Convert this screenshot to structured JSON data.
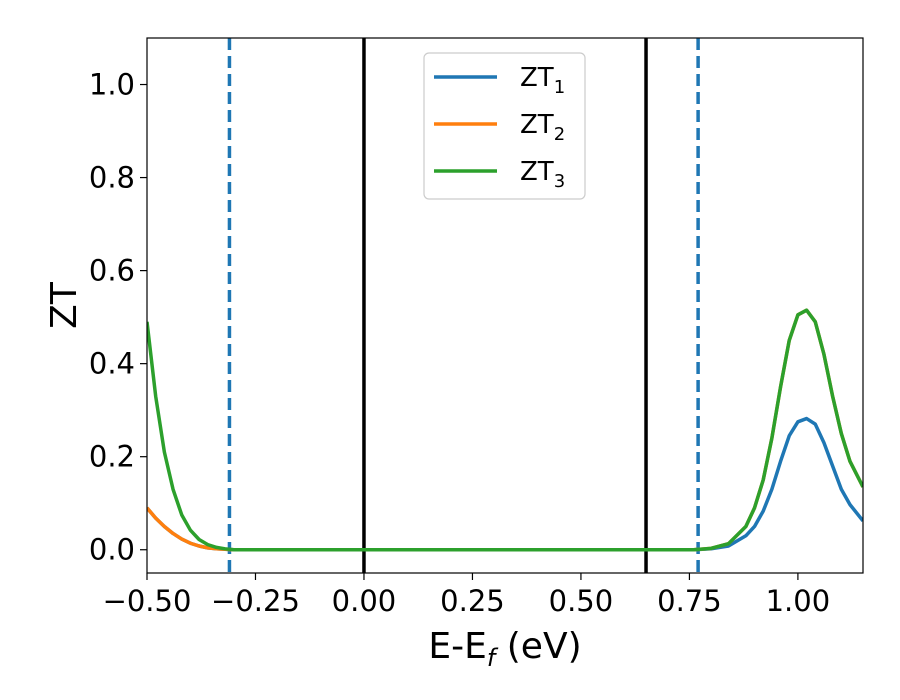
{
  "chart_data": {
    "type": "line",
    "xlabel": "E-E",
    "xlabel_sub": "f",
    "xlabel_unit": " (eV)",
    "ylabel": "ZT",
    "xlim": [
      -0.5,
      1.15
    ],
    "ylim": [
      -0.05,
      1.1
    ],
    "xticks": [
      -0.5,
      -0.25,
      0.0,
      0.25,
      0.5,
      0.75,
      1.0
    ],
    "xtick_labels": [
      "−0.50",
      "−0.25",
      "0.00",
      "0.25",
      "0.50",
      "0.75",
      "1.00"
    ],
    "yticks": [
      0.0,
      0.2,
      0.4,
      0.6,
      0.8,
      1.0
    ],
    "ytick_labels": [
      "0.0",
      "0.2",
      "0.4",
      "0.6",
      "0.8",
      "1.0"
    ],
    "grid": false,
    "legend": {
      "position": "top-center",
      "entries": [
        {
          "base": "ZT",
          "sub": "1",
          "color": "#1f77b4"
        },
        {
          "base": "ZT",
          "sub": "2",
          "color": "#ff7f0e"
        },
        {
          "base": "ZT",
          "sub": "3",
          "color": "#2ca02c"
        }
      ]
    },
    "series": [
      {
        "name": "ZT1",
        "color": "#1f77b4",
        "x": [
          -0.5,
          -0.48,
          -0.46,
          -0.44,
          -0.42,
          -0.4,
          -0.38,
          -0.36,
          -0.34,
          -0.32,
          -0.3,
          -0.25,
          -0.2,
          0.0,
          0.5,
          0.7,
          0.76,
          0.8,
          0.84,
          0.88,
          0.9,
          0.92,
          0.94,
          0.96,
          0.98,
          1.0,
          1.02,
          1.04,
          1.06,
          1.08,
          1.1,
          1.12,
          1.15
        ],
        "y": [
          0.09,
          0.068,
          0.05,
          0.035,
          0.023,
          0.014,
          0.008,
          0.004,
          0.002,
          0.001,
          0.0,
          0.0,
          0.0,
          0.0,
          0.0,
          0.0,
          0.0,
          0.002,
          0.008,
          0.03,
          0.05,
          0.083,
          0.13,
          0.19,
          0.245,
          0.275,
          0.282,
          0.27,
          0.23,
          0.18,
          0.13,
          0.097,
          0.062
        ]
      },
      {
        "name": "ZT2",
        "color": "#ff7f0e",
        "x": [
          -0.5,
          -0.48,
          -0.46,
          -0.44,
          -0.42,
          -0.4,
          -0.38,
          -0.36,
          -0.34,
          -0.32,
          -0.3,
          -0.25,
          -0.2,
          0.0,
          0.5,
          0.7,
          0.76,
          0.8,
          0.84,
          0.88,
          0.9,
          0.92,
          0.94,
          0.96,
          0.98,
          1.0,
          1.02,
          1.04,
          1.06,
          1.08,
          1.1,
          1.12,
          1.15
        ],
        "y": [
          0.09,
          0.068,
          0.05,
          0.035,
          0.023,
          0.014,
          0.008,
          0.004,
          0.002,
          0.001,
          0.0,
          0.0,
          0.0,
          0.0,
          0.0,
          0.0,
          0.0,
          0.003,
          0.013,
          0.05,
          0.09,
          0.15,
          0.24,
          0.35,
          0.45,
          0.505,
          0.515,
          0.49,
          0.42,
          0.33,
          0.25,
          0.19,
          0.135
        ]
      },
      {
        "name": "ZT3",
        "color": "#2ca02c",
        "x": [
          -0.5,
          -0.48,
          -0.46,
          -0.44,
          -0.42,
          -0.4,
          -0.38,
          -0.36,
          -0.34,
          -0.32,
          -0.3,
          -0.25,
          -0.2,
          0.0,
          0.5,
          0.7,
          0.76,
          0.8,
          0.84,
          0.88,
          0.9,
          0.92,
          0.94,
          0.96,
          0.98,
          1.0,
          1.02,
          1.04,
          1.06,
          1.08,
          1.1,
          1.12,
          1.15
        ],
        "y": [
          0.49,
          0.33,
          0.21,
          0.13,
          0.075,
          0.042,
          0.022,
          0.011,
          0.005,
          0.002,
          0.0,
          0.0,
          0.0,
          0.0,
          0.0,
          0.0,
          0.0,
          0.003,
          0.013,
          0.05,
          0.09,
          0.15,
          0.24,
          0.35,
          0.45,
          0.505,
          0.515,
          0.49,
          0.42,
          0.33,
          0.25,
          0.19,
          0.135
        ]
      }
    ],
    "vlines": [
      {
        "x": -0.31,
        "color": "#1f77b4",
        "style": "dashed"
      },
      {
        "x": 0.0,
        "color": "#000000",
        "style": "solid"
      },
      {
        "x": 0.65,
        "color": "#000000",
        "style": "solid"
      },
      {
        "x": 0.77,
        "color": "#1f77b4",
        "style": "dashed"
      }
    ]
  }
}
